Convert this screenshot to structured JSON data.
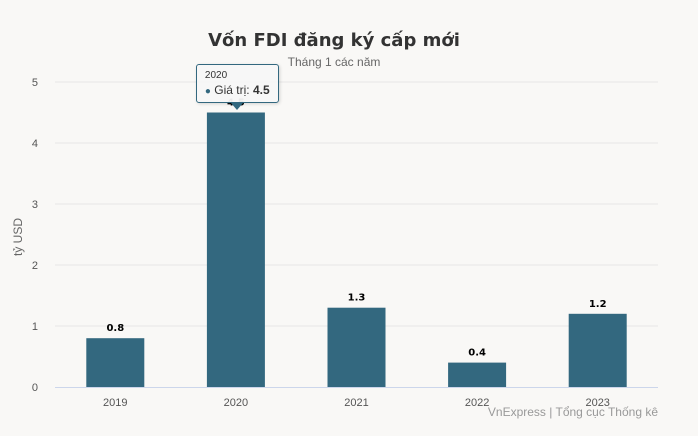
{
  "chart_data": {
    "type": "bar",
    "title": "Vốn FDI đăng ký cấp mới",
    "subtitle": "Tháng 1 các năm",
    "ylabel": "tỷ USD",
    "xlabel": "",
    "categories": [
      "2019",
      "2020",
      "2021",
      "2022",
      "2023"
    ],
    "values": [
      0.8,
      4.5,
      1.3,
      0.4,
      1.2
    ],
    "ylim": [
      0,
      5
    ],
    "yticks": [
      0,
      1,
      2,
      3,
      4,
      5
    ],
    "grid": true,
    "legend": false,
    "bar_color": "#33687f",
    "data_labels": true
  },
  "tooltip": {
    "category": "2020",
    "series_label": "Giá trị",
    "value": "4.5"
  },
  "credits": "VnExpress | Tổng cục Thống kê"
}
